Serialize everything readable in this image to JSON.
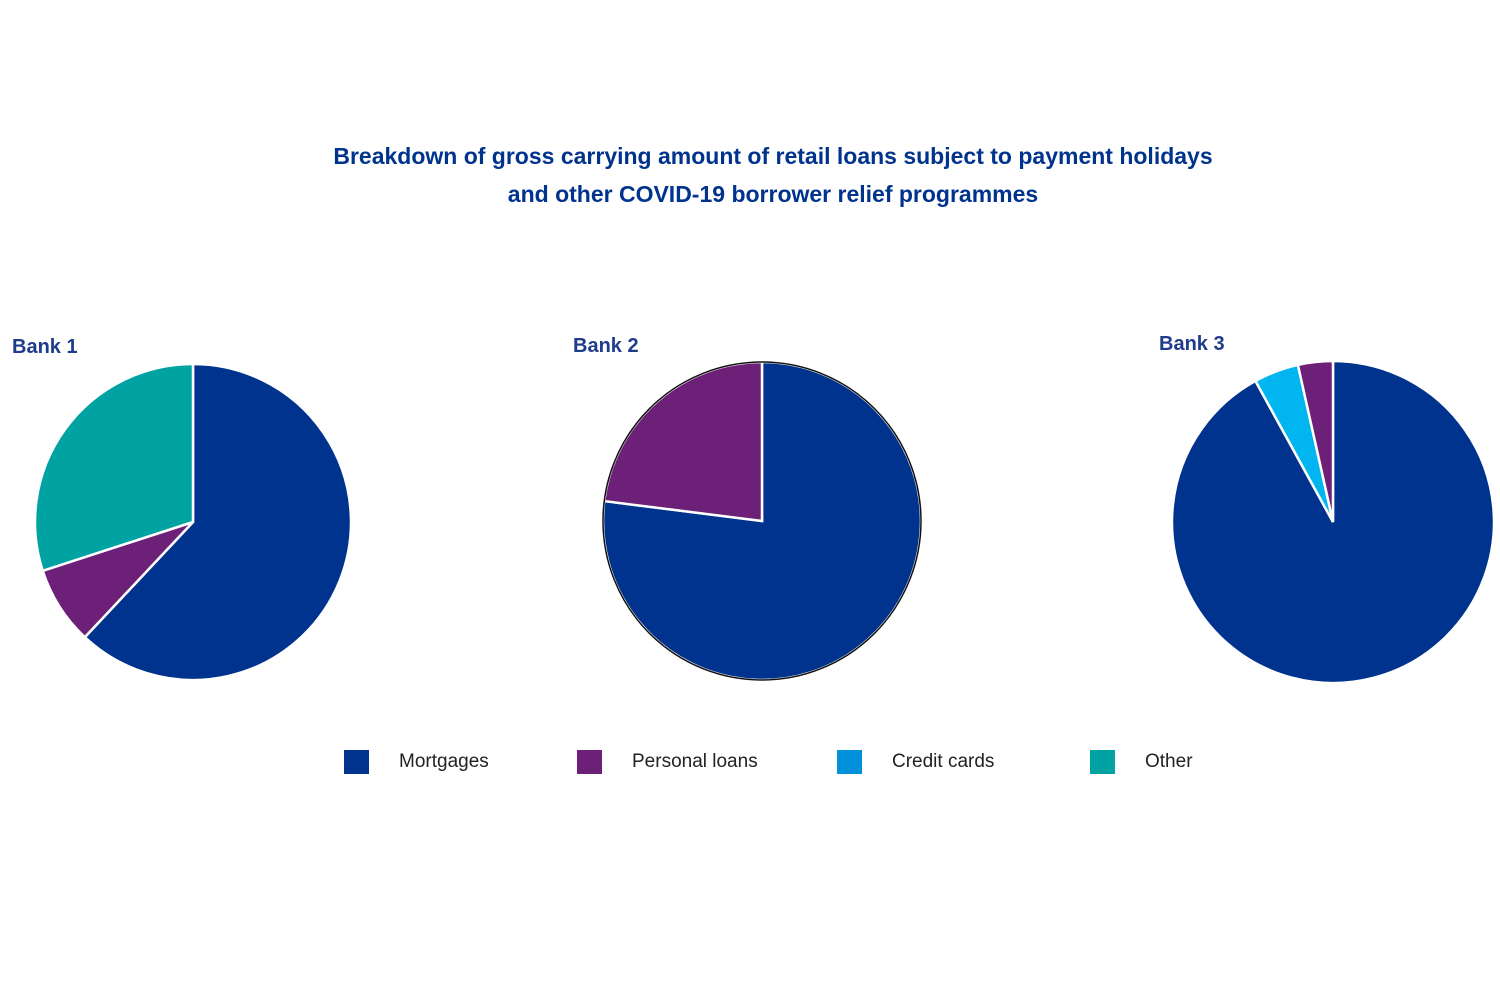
{
  "chart_data": {
    "type": "pie",
    "title": "Breakdown of gross carrying amount of retail loans subject to payment holidays and other COVID-19 borrower relief programmes",
    "title_lines": [
      "Breakdown of gross carrying amount of retail loans subject to payment holidays",
      "and other COVID-19 borrower relief programmes"
    ],
    "legend": [
      {
        "name": "Mortgages",
        "color": "#00338D"
      },
      {
        "name": "Personal loans",
        "color": "#6D2077"
      },
      {
        "name": "Credit cards",
        "color": "#0091DA"
      },
      {
        "name": "Other",
        "color": "#00A3A1"
      }
    ],
    "legend_position": "bottom",
    "pies": [
      {
        "label": "Bank 1",
        "slices": [
          {
            "name": "Mortgages",
            "value": 62,
            "color": "#00338D"
          },
          {
            "name": "Personal loans",
            "value": 8,
            "color": "#6D2077"
          },
          {
            "name": "Other",
            "value": 30,
            "color": "#00A3A1"
          }
        ]
      },
      {
        "label": "Bank 2",
        "slices": [
          {
            "name": "Mortgages",
            "value": 77,
            "color": "#00338D"
          },
          {
            "name": "Personal loans",
            "value": 23,
            "color": "#6D2077"
          }
        ]
      },
      {
        "label": "Bank 3",
        "slices": [
          {
            "name": "Mortgages",
            "value": 92,
            "color": "#00338D"
          },
          {
            "name": "Credit cards",
            "value": 4.5,
            "color": "#00B5F0"
          },
          {
            "name": "Personal loans",
            "value": 3.5,
            "color": "#6D2077"
          }
        ]
      }
    ]
  }
}
